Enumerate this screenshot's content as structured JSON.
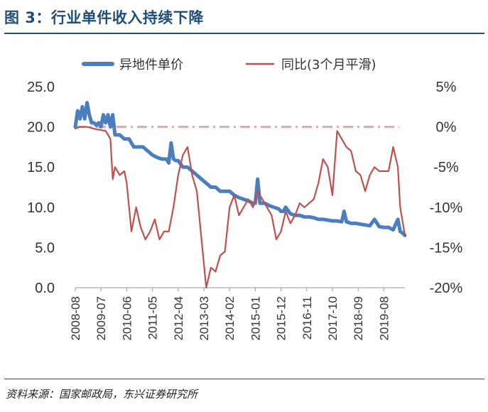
{
  "figure": {
    "title": "图 3：行业单件收入持续下降",
    "source": "资料来源：国家邮政局，东兴证券研究所"
  },
  "chart_data": {
    "type": "line",
    "title": "图 3：行业单件收入持续下降",
    "x_start": "2008-08",
    "x_end": "2020-05",
    "x_tick_labels": [
      "2008-08",
      "2009-07",
      "2010-06",
      "2011-05",
      "2012-04",
      "2013-03",
      "2014-02",
      "2015-01",
      "2015-12",
      "2016-11",
      "2017-10",
      "2018-09",
      "2019-08"
    ],
    "left_axis": {
      "ylim": [
        0,
        25
      ],
      "ticks": [
        "0.0",
        "5.0",
        "10.0",
        "15.0",
        "20.0",
        "25.0"
      ]
    },
    "right_axis": {
      "ylim": [
        -20,
        5
      ],
      "ticks": [
        "-20%",
        "-15%",
        "-10%",
        "-5%",
        "0%",
        "5%"
      ]
    },
    "reference_line": {
      "axis": "right",
      "value": 0,
      "style": "dash-dot",
      "color": "#e8a5a5"
    },
    "series": [
      {
        "name": "异地件单价",
        "axis": "left",
        "color": "#4a7ebf",
        "points": [
          [
            "2008-08",
            20.0
          ],
          [
            "2008-09",
            22.0
          ],
          [
            "2008-10",
            21.0
          ],
          [
            "2008-11",
            22.5
          ],
          [
            "2008-12",
            21.0
          ],
          [
            "2009-01",
            23.0
          ],
          [
            "2009-02",
            21.5
          ],
          [
            "2009-03",
            20.5
          ],
          [
            "2009-04",
            20.5
          ],
          [
            "2009-05",
            20.2
          ],
          [
            "2009-06",
            20.5
          ],
          [
            "2009-07",
            20.0
          ],
          [
            "2009-08",
            21.5
          ],
          [
            "2009-09",
            20.5
          ],
          [
            "2009-10",
            21.5
          ],
          [
            "2009-11",
            20.0
          ],
          [
            "2009-12",
            21.5
          ],
          [
            "2010-01",
            19.0
          ],
          [
            "2010-03",
            19.0
          ],
          [
            "2010-05",
            18.5
          ],
          [
            "2010-07",
            18.5
          ],
          [
            "2010-09",
            17.5
          ],
          [
            "2010-11",
            17.5
          ],
          [
            "2011-01",
            17.5
          ],
          [
            "2011-03",
            17.0
          ],
          [
            "2011-05",
            16.5
          ],
          [
            "2011-07",
            16.2
          ],
          [
            "2011-09",
            16.0
          ],
          [
            "2011-11",
            16.0
          ],
          [
            "2011-12",
            15.5
          ],
          [
            "2012-01",
            18.0
          ],
          [
            "2012-02",
            16.0
          ],
          [
            "2012-03",
            15.8
          ],
          [
            "2012-04",
            15.8
          ],
          [
            "2012-06",
            15.0
          ],
          [
            "2012-08",
            15.0
          ],
          [
            "2012-10",
            14.5
          ],
          [
            "2012-12",
            14.0
          ],
          [
            "2013-02",
            13.5
          ],
          [
            "2013-04",
            13.0
          ],
          [
            "2013-06",
            12.5
          ],
          [
            "2013-08",
            12.5
          ],
          [
            "2013-10",
            12.0
          ],
          [
            "2013-12",
            12.0
          ],
          [
            "2014-02",
            12.0
          ],
          [
            "2014-04",
            11.5
          ],
          [
            "2014-06",
            11.2
          ],
          [
            "2014-08",
            11.0
          ],
          [
            "2014-10",
            10.8
          ],
          [
            "2014-12",
            10.5
          ],
          [
            "2015-01",
            10.5
          ],
          [
            "2015-02",
            13.5
          ],
          [
            "2015-03",
            10.5
          ],
          [
            "2015-05",
            10.5
          ],
          [
            "2015-07",
            10.2
          ],
          [
            "2015-09",
            10.0
          ],
          [
            "2015-11",
            9.8
          ],
          [
            "2015-12",
            9.5
          ],
          [
            "2016-01",
            9.5
          ],
          [
            "2016-02",
            10.0
          ],
          [
            "2016-04",
            9.2
          ],
          [
            "2016-06",
            9.0
          ],
          [
            "2016-08",
            9.0
          ],
          [
            "2016-10",
            8.8
          ],
          [
            "2016-12",
            8.8
          ],
          [
            "2017-02",
            8.7
          ],
          [
            "2017-04",
            8.5
          ],
          [
            "2017-06",
            8.5
          ],
          [
            "2017-08",
            8.4
          ],
          [
            "2017-10",
            8.3
          ],
          [
            "2017-12",
            8.3
          ],
          [
            "2018-02",
            8.2
          ],
          [
            "2018-03",
            9.5
          ],
          [
            "2018-04",
            8.2
          ],
          [
            "2018-06",
            8.0
          ],
          [
            "2018-08",
            8.0
          ],
          [
            "2018-10",
            7.9
          ],
          [
            "2018-12",
            7.8
          ],
          [
            "2019-02",
            7.7
          ],
          [
            "2019-04",
            8.5
          ],
          [
            "2019-06",
            7.6
          ],
          [
            "2019-08",
            7.5
          ],
          [
            "2019-10",
            7.5
          ],
          [
            "2019-12",
            7.2
          ],
          [
            "2020-02",
            8.5
          ],
          [
            "2020-03",
            7.0
          ],
          [
            "2020-04",
            6.8
          ],
          [
            "2020-05",
            6.5
          ]
        ]
      },
      {
        "name": "同比(3个月平滑)",
        "axis": "right",
        "color": "#c0504d",
        "points": [
          [
            "2008-08",
            -0.2
          ],
          [
            "2008-10",
            0.0
          ],
          [
            "2009-01",
            0.0
          ],
          [
            "2009-05",
            -0.3
          ],
          [
            "2009-09",
            -0.5
          ],
          [
            "2009-11",
            -1.5
          ],
          [
            "2009-12",
            -6.5
          ],
          [
            "2010-01",
            -5.0
          ],
          [
            "2010-03",
            -6.0
          ],
          [
            "2010-05",
            -5.5
          ],
          [
            "2010-06",
            -7.0
          ],
          [
            "2010-08",
            -13.0
          ],
          [
            "2010-10",
            -10.0
          ],
          [
            "2010-12",
            -12.5
          ],
          [
            "2011-02",
            -14.0
          ],
          [
            "2011-04",
            -13.0
          ],
          [
            "2011-06",
            -11.5
          ],
          [
            "2011-08",
            -14.0
          ],
          [
            "2011-10",
            -13.0
          ],
          [
            "2011-12",
            -13.0
          ],
          [
            "2012-02",
            -10.0
          ],
          [
            "2012-04",
            -6.0
          ],
          [
            "2012-06",
            -3.5
          ],
          [
            "2012-08",
            -2.5
          ],
          [
            "2012-10",
            -6.0
          ],
          [
            "2012-12",
            -8.0
          ],
          [
            "2013-02",
            -14.0
          ],
          [
            "2013-04",
            -20.0
          ],
          [
            "2013-06",
            -17.5
          ],
          [
            "2013-08",
            -18.0
          ],
          [
            "2013-10",
            -16.0
          ],
          [
            "2013-12",
            -15.5
          ],
          [
            "2014-02",
            -10.0
          ],
          [
            "2014-04",
            -8.5
          ],
          [
            "2014-06",
            -11.0
          ],
          [
            "2014-08",
            -10.0
          ],
          [
            "2014-10",
            -9.0
          ],
          [
            "2014-12",
            -10.0
          ],
          [
            "2015-02",
            -8.0
          ],
          [
            "2015-04",
            -9.0
          ],
          [
            "2015-06",
            -10.0
          ],
          [
            "2015-08",
            -11.0
          ],
          [
            "2015-10",
            -14.0
          ],
          [
            "2015-12",
            -13.0
          ],
          [
            "2016-02",
            -10.5
          ],
          [
            "2016-04",
            -12.0
          ],
          [
            "2016-06",
            -11.0
          ],
          [
            "2016-08",
            -9.5
          ],
          [
            "2016-10",
            -10.0
          ],
          [
            "2016-12",
            -9.5
          ],
          [
            "2017-02",
            -9.0
          ],
          [
            "2017-04",
            -7.0
          ],
          [
            "2017-06",
            -4.0
          ],
          [
            "2017-08",
            -5.0
          ],
          [
            "2017-10",
            -8.5
          ],
          [
            "2017-12",
            -0.5
          ],
          [
            "2018-02",
            -1.5
          ],
          [
            "2018-04",
            -2.5
          ],
          [
            "2018-06",
            -3.0
          ],
          [
            "2018-08",
            -5.5
          ],
          [
            "2018-10",
            -6.0
          ],
          [
            "2018-12",
            -8.0
          ],
          [
            "2019-02",
            -6.0
          ],
          [
            "2019-04",
            -5.0
          ],
          [
            "2019-06",
            -5.5
          ],
          [
            "2019-08",
            -5.5
          ],
          [
            "2019-10",
            -5.5
          ],
          [
            "2019-12",
            -2.5
          ],
          [
            "2020-02",
            -5.0
          ],
          [
            "2020-03",
            -10.0
          ],
          [
            "2020-05",
            -13.5
          ]
        ]
      }
    ]
  }
}
